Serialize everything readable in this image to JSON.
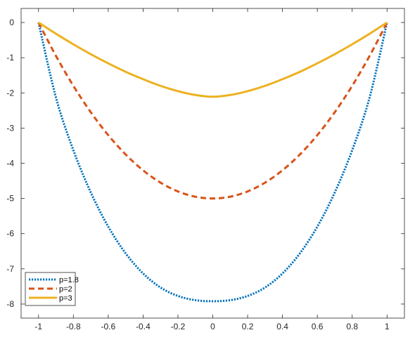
{
  "chart_data": {
    "type": "line",
    "title": "",
    "xlabel": "",
    "ylabel": "",
    "xlim": [
      -1.1,
      1.1
    ],
    "ylim": [
      -8.4,
      0.4
    ],
    "xticks": [
      -1,
      -0.8,
      -0.6,
      -0.4,
      -0.2,
      0,
      0.2,
      0.4,
      0.6,
      0.8,
      1
    ],
    "yticks": [
      0,
      -1,
      -2,
      -3,
      -4,
      -5,
      -6,
      -7,
      -8
    ],
    "grid": false,
    "legend_position": "bottom-left",
    "x": [
      -1,
      -0.9,
      -0.8,
      -0.7,
      -0.6,
      -0.5,
      -0.4,
      -0.3,
      -0.2,
      -0.1,
      0,
      0.1,
      0.2,
      0.3,
      0.4,
      0.5,
      0.6,
      0.7,
      0.8,
      0.9,
      1
    ],
    "series": [
      {
        "name": "p=1.8",
        "style": "dotted",
        "color": "#0072BD",
        "values": [
          0,
          -2.13,
          -3.63,
          -4.83,
          -5.8,
          -6.56,
          -7.13,
          -7.53,
          -7.77,
          -7.89,
          -7.92,
          -7.89,
          -7.77,
          -7.53,
          -7.13,
          -6.56,
          -5.8,
          -4.83,
          -3.63,
          -2.13,
          0
        ]
      },
      {
        "name": "p=2",
        "style": "dashed",
        "color": "#D95319",
        "values": [
          0,
          -0.95,
          -1.8,
          -2.55,
          -3.2,
          -3.75,
          -4.2,
          -4.55,
          -4.8,
          -4.95,
          -5.0,
          -4.95,
          -4.8,
          -4.55,
          -4.2,
          -3.75,
          -3.2,
          -2.55,
          -1.8,
          -0.95,
          0
        ]
      },
      {
        "name": "p=3",
        "style": "solid",
        "color": "#EDB120",
        "values": [
          0,
          -0.32,
          -0.62,
          -0.9,
          -1.16,
          -1.4,
          -1.61,
          -1.8,
          -1.95,
          -2.06,
          -2.11,
          -2.06,
          -1.95,
          -1.8,
          -1.61,
          -1.4,
          -1.16,
          -0.9,
          -0.62,
          -0.32,
          0
        ]
      }
    ]
  }
}
